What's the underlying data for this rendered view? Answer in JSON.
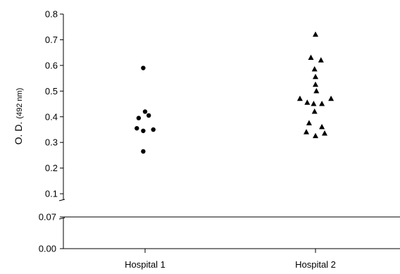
{
  "chart_data": {
    "type": "scatter",
    "ylabel": "O. D.",
    "ylabel_unit": "(492 nm)",
    "categories": [
      "Hospital 1",
      "Hospital 2"
    ],
    "axis_break": true,
    "upper_segment": {
      "ylim": [
        0.07,
        0.8
      ],
      "ticks": [
        "0.1",
        "0.2",
        "0.3",
        "0.4",
        "0.5",
        "0.6",
        "0.7",
        "0.8"
      ]
    },
    "lower_segment": {
      "ylim": [
        0.0,
        0.07
      ],
      "ticks": [
        "0.00",
        "0.07"
      ]
    },
    "grid": false,
    "legend": "none",
    "series": [
      {
        "category": "Hospital 1",
        "marker": "circle",
        "points": [
          {
            "x": -0.02,
            "y": 0.59
          },
          {
            "x": 0.0,
            "y": 0.42
          },
          {
            "x": 0.04,
            "y": 0.405
          },
          {
            "x": -0.07,
            "y": 0.395
          },
          {
            "x": -0.09,
            "y": 0.355
          },
          {
            "x": 0.09,
            "y": 0.35
          },
          {
            "x": -0.02,
            "y": 0.345
          },
          {
            "x": -0.02,
            "y": 0.265
          }
        ]
      },
      {
        "category": "Hospital 2",
        "marker": "triangle",
        "points": [
          {
            "x": 0.0,
            "y": 0.72
          },
          {
            "x": -0.05,
            "y": 0.63
          },
          {
            "x": 0.06,
            "y": 0.62
          },
          {
            "x": -0.01,
            "y": 0.585
          },
          {
            "x": 0.0,
            "y": 0.555
          },
          {
            "x": 0.0,
            "y": 0.525
          },
          {
            "x": 0.01,
            "y": 0.5
          },
          {
            "x": -0.17,
            "y": 0.47
          },
          {
            "x": 0.17,
            "y": 0.47
          },
          {
            "x": -0.09,
            "y": 0.455
          },
          {
            "x": 0.07,
            "y": 0.45
          },
          {
            "x": -0.02,
            "y": 0.45
          },
          {
            "x": -0.01,
            "y": 0.42
          },
          {
            "x": -0.07,
            "y": 0.375
          },
          {
            "x": 0.07,
            "y": 0.36
          },
          {
            "x": -0.1,
            "y": 0.34
          },
          {
            "x": 0.1,
            "y": 0.335
          },
          {
            "x": 0.0,
            "y": 0.325
          }
        ]
      }
    ]
  }
}
